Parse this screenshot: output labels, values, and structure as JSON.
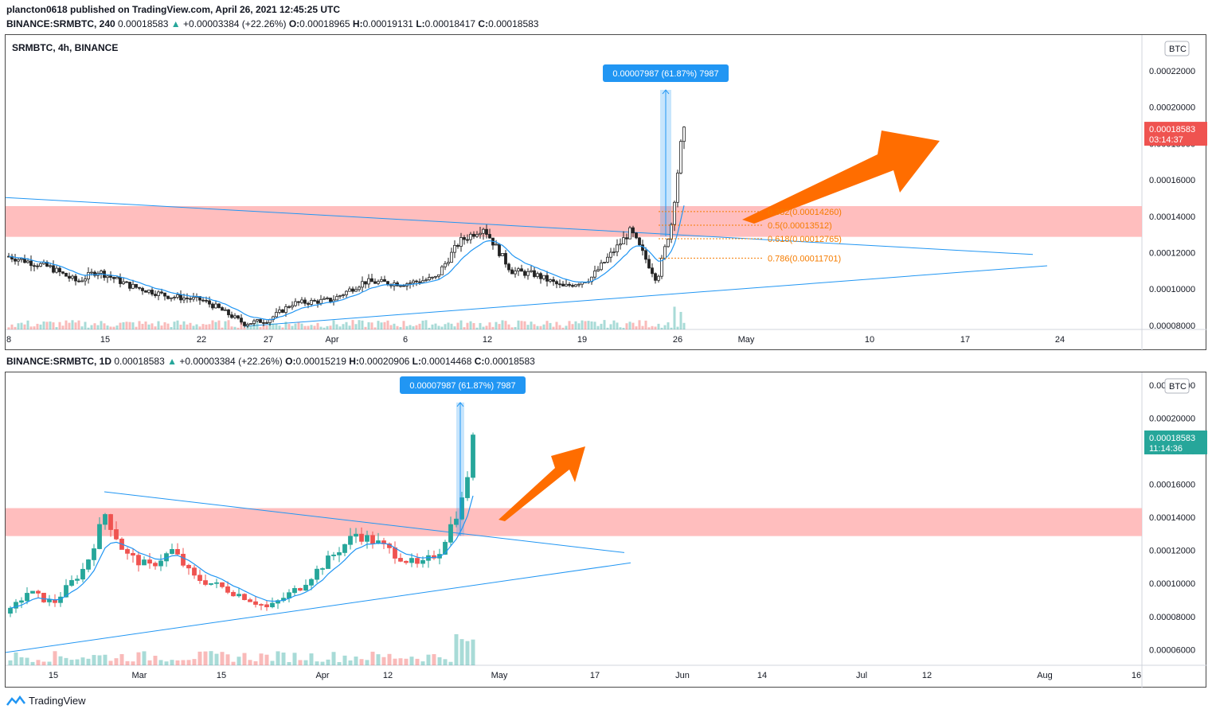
{
  "header": {
    "publisher_line": "plancton0618 published on TradingView.com, April 26, 2021 12:45:25 UTC",
    "top_symbol": "BINANCE:SRMBTC, 240",
    "top_last": "0.00018583",
    "top_change": "+0.00003384 (+22.26%)",
    "top_open": "0.00018965",
    "top_high": "0.00019131",
    "top_low": "0.00018417",
    "top_close": "0.00018583",
    "bottom_symbol": "BINANCE:SRMBTC, 1D",
    "bottom_last": "0.00018583",
    "bottom_change": "+0.00003384 (+22.26%)",
    "bottom_open": "0.00015219",
    "bottom_high": "0.00020906",
    "bottom_low": "0.00014468",
    "bottom_close": "0.00018583",
    "ohlc_letters": {
      "o": "O:",
      "h": "H:",
      "l": "L:",
      "c": "C:"
    }
  },
  "footer": {
    "brand": "TradingView"
  },
  "colors": {
    "up": "#26a69a",
    "down": "#ef5350",
    "zone": "#ffb3b3",
    "trend": "#2196f3",
    "fib": "#f57c00",
    "arrow": "#ff6d00",
    "ma": "#2196f3"
  },
  "chart_data": [
    {
      "type": "candlestick",
      "title": "SRMBTC, 4h, BINANCE",
      "currency_badge": "BTC",
      "y_ticks": [
        "0.00022000",
        "0.00020000",
        "0.00018000",
        "0.00016000",
        "0.00014000",
        "0.00012000",
        "0.00010000",
        "0.00008000"
      ],
      "y_tick_values": [
        0.00022,
        0.0002,
        0.00018,
        0.00016,
        0.00014,
        0.00012,
        0.0001,
        8e-05
      ],
      "x_ticks": [
        "8",
        "15",
        "22",
        "27",
        "Apr",
        "6",
        "12",
        "19",
        "26",
        "May",
        "10",
        "17",
        "24"
      ],
      "last_price": "0.00018583",
      "countdown": "03:14:37",
      "measure_label": "0.00007987 (61.87%) 7987",
      "fib_levels": [
        {
          "label": "0.382(0.00014260)",
          "value": 0.0001426
        },
        {
          "label": "0.5(0.00013512)",
          "value": 0.00013512
        },
        {
          "label": "0.618(0.00012765)",
          "value": 0.00012765
        },
        {
          "label": "0.786(0.00011701)",
          "value": 0.00011701
        }
      ],
      "resistance_zone": [
        0.0001287,
        0.0001456
      ],
      "close_path": [
        {
          "x": "Mar 8",
          "y": 0.000118
        },
        {
          "x": "Mar 11",
          "y": 0.000112
        },
        {
          "x": "Mar 13",
          "y": 0.000104
        },
        {
          "x": "Mar 14",
          "y": 0.00011
        },
        {
          "x": "Mar 16",
          "y": 0.000102
        },
        {
          "x": "Mar 19",
          "y": 9.6e-05
        },
        {
          "x": "Mar 22",
          "y": 9.4e-05
        },
        {
          "x": "Mar 23",
          "y": 9e-05
        },
        {
          "x": "Mar 25",
          "y": 8.1e-05
        },
        {
          "x": "Mar 27",
          "y": 8.3e-05
        },
        {
          "x": "Mar 29",
          "y": 9.2e-05
        },
        {
          "x": "Apr 1",
          "y": 9.4e-05
        },
        {
          "x": "Apr 3",
          "y": 0.000104
        },
        {
          "x": "Apr 6",
          "y": 0.000103
        },
        {
          "x": "Apr 8",
          "y": 0.000106
        },
        {
          "x": "Apr 10",
          "y": 0.000126
        },
        {
          "x": "Apr 12",
          "y": 0.000134
        },
        {
          "x": "Apr 14",
          "y": 0.00011
        },
        {
          "x": "Apr 16",
          "y": 0.000108
        },
        {
          "x": "Apr 18",
          "y": 0.000101
        },
        {
          "x": "Apr 20",
          "y": 0.000106
        },
        {
          "x": "Apr 22",
          "y": 0.000132
        },
        {
          "x": "Apr 24",
          "y": 0.000105
        },
        {
          "x": "Apr 25",
          "y": 0.000136
        },
        {
          "x": "Apr 26",
          "y": 0.000186
        }
      ]
    },
    {
      "type": "candlestick",
      "title": "SRMBTC, 1D, BINANCE",
      "currency_badge": "BTC",
      "y_ticks": [
        "0.00022000",
        "0.00020000",
        "0.00018000",
        "0.00016000",
        "0.00014000",
        "0.00012000",
        "0.00010000",
        "0.00008000",
        "0.00006000"
      ],
      "y_tick_values": [
        0.00022,
        0.0002,
        0.00018,
        0.00016,
        0.00014,
        0.00012,
        0.0001,
        8e-05,
        6e-05
      ],
      "x_ticks": [
        "15",
        "Mar",
        "15",
        "Apr",
        "12",
        "May",
        "17",
        "Jun",
        "14",
        "Jul",
        "12",
        "Aug",
        "16"
      ],
      "last_price": "0.00018583",
      "countdown": "11:14:36",
      "measure_label": "0.00007987 (61.87%) 7987",
      "resistance_zone": [
        0.0001287,
        0.0001456
      ],
      "close_path": [
        {
          "x": "Feb 8",
          "y": 8.2e-05
        },
        {
          "x": "Feb 11",
          "y": 9.5e-05
        },
        {
          "x": "Feb 15",
          "y": 8.8e-05
        },
        {
          "x": "Feb 20",
          "y": 0.00011
        },
        {
          "x": "Feb 22",
          "y": 0.000142
        },
        {
          "x": "Feb 25",
          "y": 0.000118
        },
        {
          "x": "Mar 1",
          "y": 0.00011
        },
        {
          "x": "Mar 5",
          "y": 0.00012
        },
        {
          "x": "Mar 9",
          "y": 0.000104
        },
        {
          "x": "Mar 15",
          "y": 9.8e-05
        },
        {
          "x": "Mar 20",
          "y": 9.2e-05
        },
        {
          "x": "Mar 25",
          "y": 8.5e-05
        },
        {
          "x": "Mar 28",
          "y": 9e-05
        },
        {
          "x": "Apr 1",
          "y": 9.8e-05
        },
        {
          "x": "Apr 5",
          "y": 0.000112
        },
        {
          "x": "Apr 10",
          "y": 0.00013
        },
        {
          "x": "Apr 13",
          "y": 0.000125
        },
        {
          "x": "Apr 17",
          "y": 0.000115
        },
        {
          "x": "Apr 20",
          "y": 0.00011
        },
        {
          "x": "Apr 23",
          "y": 0.00012
        },
        {
          "x": "Apr 25",
          "y": 0.000152
        },
        {
          "x": "Apr 26",
          "y": 0.000186
        }
      ]
    }
  ]
}
